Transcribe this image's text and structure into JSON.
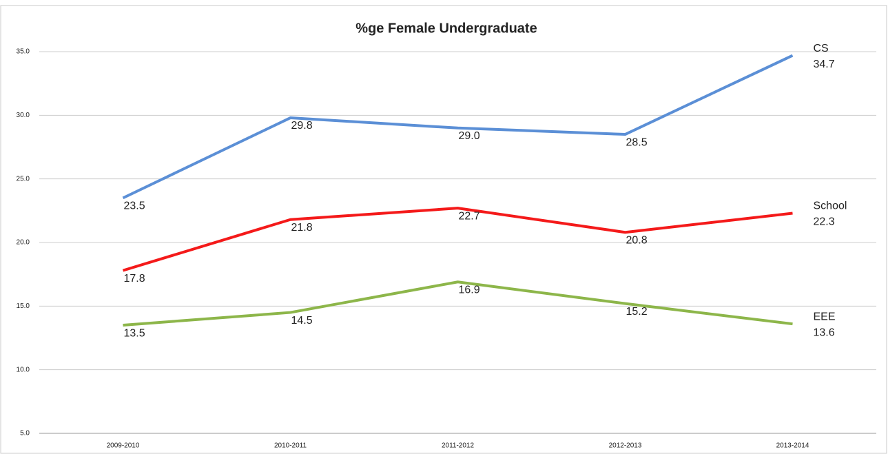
{
  "chart_data": {
    "type": "line",
    "title": "%ge Female Undergraduate",
    "categories": [
      "2009-2010",
      "2010-2011",
      "2011-2012",
      "2012-2013",
      "2013-2014"
    ],
    "series": [
      {
        "name": "CS",
        "color": "#5b8fd6",
        "values": [
          23.5,
          29.8,
          29.0,
          28.5,
          34.7
        ],
        "value_labels": [
          "23.5",
          "29.8",
          "29.0",
          "28.5",
          "34.7"
        ]
      },
      {
        "name": "School",
        "color": "#f41a1a",
        "values": [
          17.8,
          21.8,
          22.7,
          20.8,
          22.3
        ],
        "value_labels": [
          "17.8",
          "21.8",
          "22.7",
          "20.8",
          "22.3"
        ]
      },
      {
        "name": "EEE",
        "color": "#8db64a",
        "values": [
          13.5,
          14.5,
          16.9,
          15.2,
          13.6
        ],
        "value_labels": [
          "13.5",
          "14.5",
          "16.9",
          "15.2",
          "13.6"
        ]
      }
    ],
    "ylim": [
      5,
      35
    ],
    "yticks": [
      {
        "value": 5,
        "label": "5.0"
      },
      {
        "value": 10,
        "label": "10.0"
      },
      {
        "value": 15,
        "label": "15.0"
      },
      {
        "value": 20,
        "label": "20.0"
      },
      {
        "value": 25,
        "label": "25.0"
      },
      {
        "value": 30,
        "label": "30.0"
      },
      {
        "value": 35,
        "label": "35.0"
      }
    ],
    "grid": true
  }
}
